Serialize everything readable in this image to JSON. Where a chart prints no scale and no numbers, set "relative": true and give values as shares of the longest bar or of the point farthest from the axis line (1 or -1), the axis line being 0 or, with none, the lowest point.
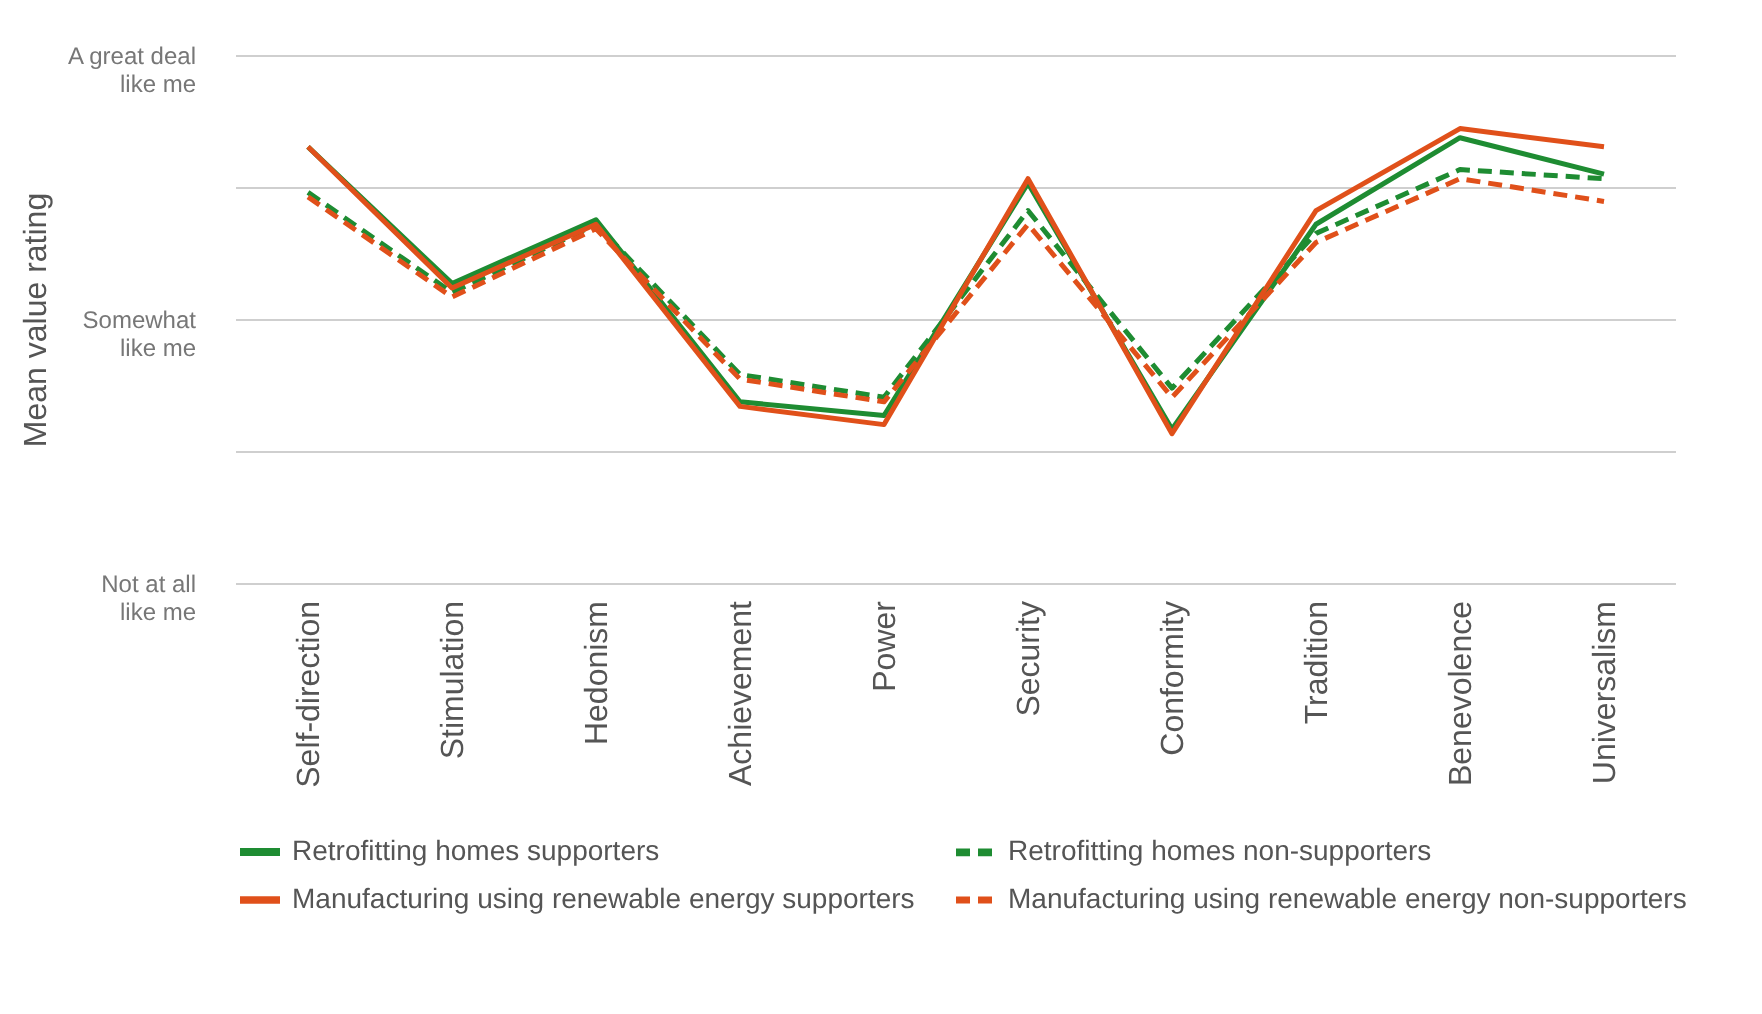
{
  "chart_data": {
    "type": "line",
    "relative": true,
    "categories": [
      "Self-direction",
      "Stimulation",
      "Hedonism",
      "Achievement",
      "Power",
      "Security",
      "Conformity",
      "Tradition",
      "Benevolence",
      "Universalism"
    ],
    "annotations": [
      "A great deal like me",
      "Somewhat like me",
      "Not at all like me",
      "Mean value rating"
    ],
    "grid": "y",
    "legend": "bottom",
    "marker": "none",
    "series": [
      {
        "name": "Retrofitting homes supporters",
        "color": "#1e8c32",
        "line_style": "solid",
        "values": [
          0.96,
          0.66,
          0.8,
          0.4,
          0.37,
          0.88,
          0.34,
          0.79,
          0.98,
          0.9
        ]
      },
      {
        "name": "Retrofitting homes non-supporters",
        "color": "#1e8c32",
        "line_style": "dashed",
        "values": [
          0.86,
          0.64,
          0.79,
          0.46,
          0.41,
          0.82,
          0.43,
          0.77,
          0.91,
          0.89
        ]
      },
      {
        "name": "Manufacturing using renewable energy supporters",
        "color": "#e0501a",
        "line_style": "solid",
        "values": [
          0.96,
          0.65,
          0.79,
          0.39,
          0.35,
          0.89,
          0.33,
          0.82,
          1,
          0.96
        ]
      },
      {
        "name": "Manufacturing using renewable energy non-supporters",
        "color": "#e0501a",
        "line_style": "dashed",
        "values": [
          0.85,
          0.63,
          0.78,
          0.45,
          0.4,
          0.79,
          0.41,
          0.75,
          0.89,
          0.84
        ]
      }
    ]
  }
}
